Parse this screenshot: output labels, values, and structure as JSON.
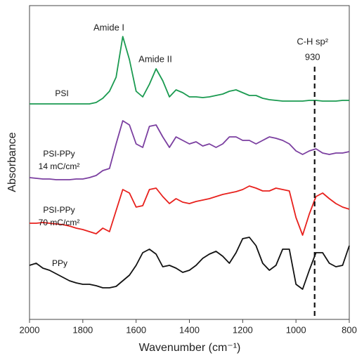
{
  "chart_data": {
    "type": "line",
    "x_label": "Wavenumber (cm⁻¹)",
    "y_label": "Absorbance",
    "x": [
      2000,
      1975,
      1950,
      1925,
      1900,
      1875,
      1850,
      1825,
      1800,
      1775,
      1750,
      1725,
      1700,
      1675,
      1650,
      1625,
      1600,
      1575,
      1550,
      1525,
      1500,
      1475,
      1450,
      1425,
      1400,
      1375,
      1350,
      1325,
      1300,
      1275,
      1250,
      1225,
      1200,
      1175,
      1150,
      1125,
      1100,
      1075,
      1050,
      1025,
      1000,
      975,
      950,
      925,
      900,
      875,
      850,
      825,
      800
    ],
    "series": [
      {
        "name": "PSI",
        "color": "#1a9a50",
        "values": [
          307,
          307,
          307,
          307,
          307,
          307,
          307,
          307,
          307,
          307,
          309,
          315,
          325,
          345,
          403,
          370,
          325,
          317,
          335,
          357,
          340,
          317,
          327,
          323,
          317,
          317,
          316,
          317,
          319,
          321,
          325,
          327,
          323,
          319,
          319,
          315,
          313,
          312,
          311,
          311,
          311,
          311,
          312,
          312,
          311,
          311,
          311,
          312,
          312
        ]
      },
      {
        "name": "PSI-PPy\n14 mC/cm²",
        "color": "#7b3fa0",
        "values": [
          202,
          201,
          200,
          200,
          199,
          199,
          199,
          200,
          200,
          202,
          205,
          212,
          215,
          250,
          283,
          277,
          250,
          245,
          275,
          277,
          260,
          245,
          260,
          255,
          250,
          253,
          247,
          250,
          245,
          250,
          260,
          260,
          255,
          255,
          250,
          255,
          260,
          258,
          255,
          250,
          240,
          235,
          240,
          243,
          237,
          235,
          237,
          237,
          239
        ]
      },
      {
        "name": "PSI-PPy\n70 mC/cm²",
        "color": "#e8211d",
        "values": [
          137,
          137,
          138,
          137,
          136,
          135,
          133,
          130,
          128,
          125,
          122,
          130,
          125,
          155,
          185,
          180,
          160,
          162,
          185,
          187,
          175,
          165,
          172,
          167,
          165,
          168,
          170,
          172,
          175,
          178,
          180,
          182,
          185,
          190,
          187,
          183,
          183,
          187,
          185,
          183,
          145,
          120,
          150,
          175,
          180,
          172,
          165,
          160,
          157
        ]
      },
      {
        "name": "PPy",
        "color": "#111111",
        "values": [
          77,
          80,
          73,
          70,
          65,
          60,
          55,
          52,
          50,
          50,
          48,
          45,
          45,
          47,
          55,
          63,
          77,
          95,
          100,
          93,
          75,
          77,
          73,
          67,
          70,
          77,
          87,
          93,
          97,
          90,
          80,
          95,
          115,
          117,
          105,
          80,
          70,
          77,
          100,
          100,
          50,
          43,
          70,
          95,
          95,
          80,
          75,
          77,
          105
        ]
      }
    ],
    "annotations": [
      "Amide I",
      "Amide II"
    ],
    "reference_line": {
      "x": 930,
      "label": "C-H sp²"
    },
    "xlim": [
      2000,
      800
    ],
    "xticks": [
      2000,
      1800,
      1600,
      1400,
      1200,
      1000,
      800
    ],
    "ylim": [
      0,
      447
    ]
  }
}
